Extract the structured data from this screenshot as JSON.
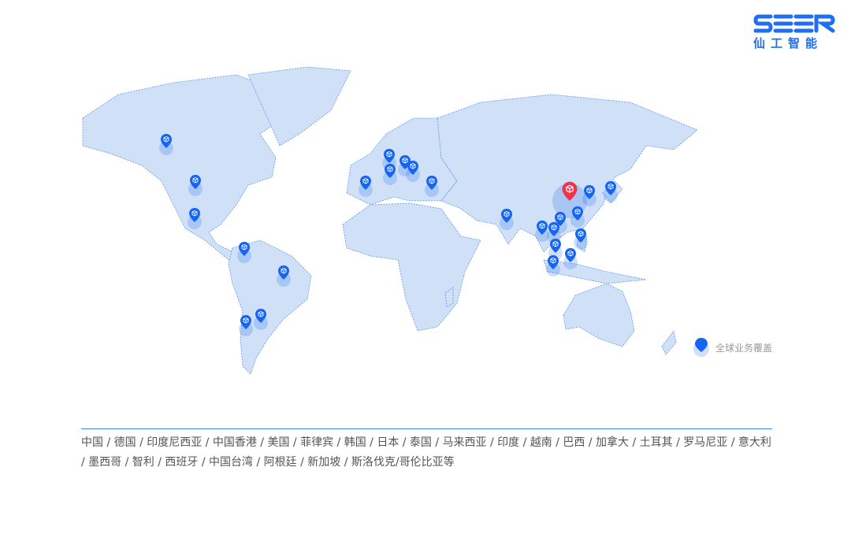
{
  "brand": {
    "logo_text": "SEER",
    "logo_subtitle": "仙工智能",
    "color": "#1f6ff2"
  },
  "map": {
    "land_color": "#cfe0f7",
    "border_color": "#5b95ee",
    "pin_color": "#1565f0",
    "hq_pin_color": "#f0334b",
    "pins": [
      {
        "name": "加拿大",
        "type": "office"
      },
      {
        "name": "美国",
        "type": "office"
      },
      {
        "name": "墨西哥",
        "type": "office"
      },
      {
        "name": "哥伦比亚",
        "type": "office"
      },
      {
        "name": "巴西",
        "type": "office"
      },
      {
        "name": "智利",
        "type": "office"
      },
      {
        "name": "阿根廷",
        "type": "office"
      },
      {
        "name": "西班牙",
        "type": "office"
      },
      {
        "name": "德国",
        "type": "office"
      },
      {
        "name": "斯洛伐克",
        "type": "office"
      },
      {
        "name": "罗马尼亚",
        "type": "office"
      },
      {
        "name": "意大利",
        "type": "office"
      },
      {
        "name": "土耳其",
        "type": "office"
      },
      {
        "name": "印度",
        "type": "office"
      },
      {
        "name": "中国",
        "type": "headquarters"
      },
      {
        "name": "韩国",
        "type": "office"
      },
      {
        "name": "日本",
        "type": "office"
      },
      {
        "name": "中国台湾",
        "type": "office"
      },
      {
        "name": "中国香港",
        "type": "office"
      },
      {
        "name": "越南",
        "type": "office"
      },
      {
        "name": "泰国",
        "type": "office"
      },
      {
        "name": "菲律宾",
        "type": "office"
      },
      {
        "name": "马来西亚",
        "type": "office"
      },
      {
        "name": "印度尼西亚",
        "type": "office"
      },
      {
        "name": "新加坡",
        "type": "office"
      }
    ],
    "legend_label": "全球业务覆盖"
  },
  "countries_text": "中国 / 德国 / 印度尼西亚 / 中国香港 / 美国 / 菲律宾 / 韩国 / 日本 / 泰国 / 马来西亚 / 印度 / 越南 / 巴西 / 加拿大 / 土耳其 / 罗马尼亚 / 意大利 / 墨西哥 / 智利 / 西班牙 / 中国台湾 / 阿根廷 / 新加坡 / 斯洛伐克/哥伦比亚等"
}
